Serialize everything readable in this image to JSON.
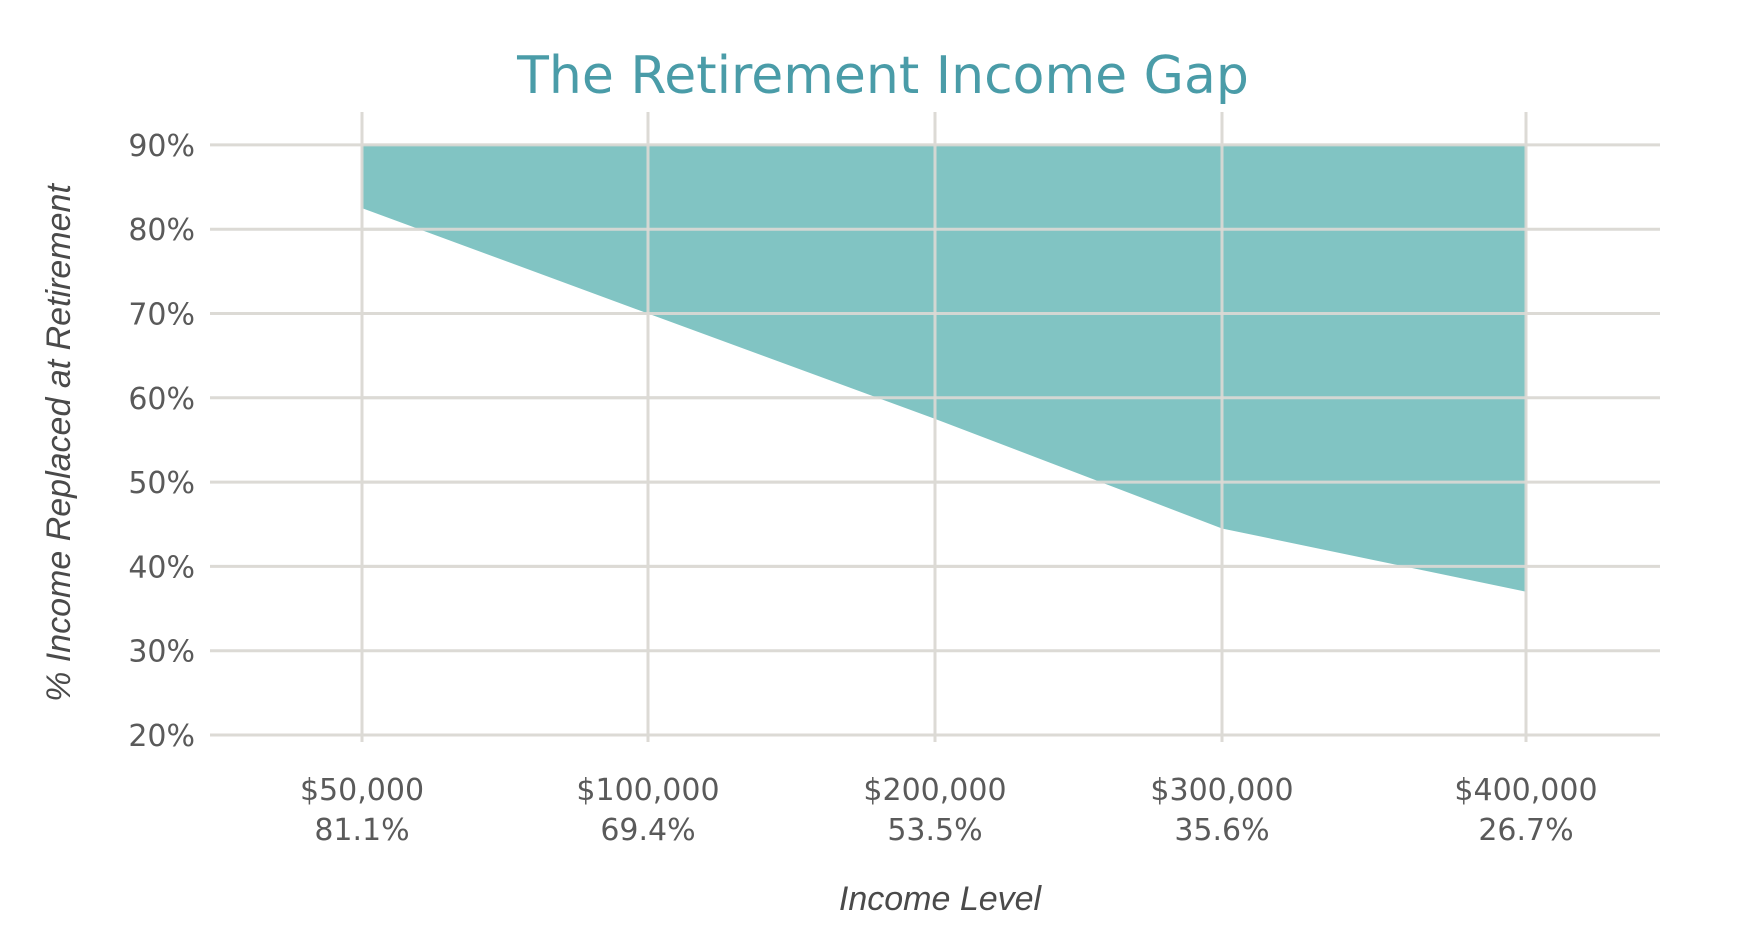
{
  "chart_data": {
    "type": "area",
    "title": "The Retirement Income Gap",
    "xlabel": "Income Level",
    "ylabel": "% Income Replaced at Retirement",
    "categories": [
      "$50,000",
      "$100,000",
      "$200,000",
      "$300,000",
      "$400,000"
    ],
    "category_sublabels": [
      "81.1%",
      "69.4%",
      "53.5%",
      "35.6%",
      "26.7%"
    ],
    "y_ticks": [
      "20%",
      "30%",
      "40%",
      "50%",
      "60%",
      "70%",
      "80%",
      "90%"
    ],
    "ylim": [
      20,
      90
    ],
    "grid": true,
    "series": [
      {
        "upper": [
          90,
          90,
          90,
          90,
          90
        ],
        "lower": [
          82.5,
          70,
          57.5,
          44.5,
          37
        ]
      }
    ],
    "colors": {
      "fill": "#81c4c3",
      "grid": "#dcdad5",
      "title": "#4a9ca8",
      "text": "#5a5a5a"
    }
  }
}
